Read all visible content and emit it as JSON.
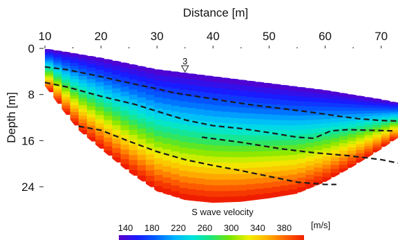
{
  "chart_data": {
    "type": "heatmap",
    "title": "",
    "xlabel": "Distance [m]",
    "ylabel": "Depth [m]",
    "xlim": [
      10,
      73
    ],
    "ylim": [
      0,
      27
    ],
    "y_inverted": true,
    "x_axis_position": "top",
    "x_ticks": [
      "10",
      "20",
      "30",
      "40",
      "50",
      "60",
      "70"
    ],
    "x_tick_values": [
      10,
      20,
      30,
      40,
      50,
      60,
      70
    ],
    "y_ticks": [
      "0",
      "8",
      "16",
      "24"
    ],
    "y_tick_values": [
      0,
      8,
      16,
      24
    ],
    "marker": {
      "label": "3",
      "x": 35,
      "symbol": "inverted-triangle"
    },
    "colorbar": {
      "title": "S wave velocity",
      "unit": "[m/s]",
      "ticks": [
        "140",
        "180",
        "220",
        "260",
        "300",
        "340",
        "380"
      ],
      "tick_values": [
        140,
        180,
        220,
        260,
        300,
        340,
        380
      ],
      "range": [
        130,
        410
      ],
      "colors": [
        "#5b00c8",
        "#1a1aff",
        "#0060ff",
        "#00b4ff",
        "#00e6dc",
        "#1ee678",
        "#7ae600",
        "#f0f000",
        "#ffb400",
        "#ff6400",
        "#f01e00"
      ]
    },
    "section_boundary": {
      "top": [
        [
          10,
          0
        ],
        [
          14,
          0.6
        ],
        [
          20,
          1.6
        ],
        [
          26,
          2.8
        ],
        [
          30,
          3.6
        ],
        [
          35,
          4.2
        ],
        [
          40,
          4.8
        ],
        [
          45,
          5.4
        ],
        [
          50,
          6.0
        ],
        [
          55,
          6.6
        ],
        [
          60,
          7.2
        ],
        [
          65,
          8.0
        ],
        [
          70,
          8.8
        ],
        [
          73,
          9.4
        ]
      ],
      "bottom": [
        [
          10,
          6.5
        ],
        [
          13,
          10.5
        ],
        [
          16,
          14.2
        ],
        [
          20,
          17.5
        ],
        [
          25,
          21.5
        ],
        [
          30,
          24.8
        ],
        [
          35,
          26.3
        ],
        [
          40,
          26.8
        ],
        [
          45,
          26.6
        ],
        [
          50,
          26.0
        ],
        [
          55,
          25.2
        ],
        [
          60,
          23.2
        ],
        [
          65,
          20.5
        ],
        [
          70,
          17.5
        ],
        [
          73,
          15.5
        ]
      ]
    },
    "layer_boundaries": [
      {
        "points": [
          [
            10,
            3.2
          ],
          [
            14,
            3.7
          ],
          [
            20,
            4.9
          ],
          [
            26,
            6.2
          ],
          [
            30,
            7.0
          ],
          [
            33,
            7.7
          ],
          [
            37,
            8.3
          ],
          [
            42,
            9.1
          ],
          [
            47,
            9.8
          ],
          [
            52,
            10.4
          ],
          [
            57,
            11.0
          ],
          [
            62,
            11.7
          ],
          [
            66,
            12.2
          ],
          [
            70,
            12.5
          ],
          [
            73,
            12.6
          ]
        ]
      },
      {
        "points": [
          [
            10,
            5.9
          ],
          [
            14,
            6.7
          ],
          [
            20,
            8.3
          ],
          [
            26,
            9.7
          ],
          [
            31,
            11.2
          ],
          [
            35,
            12.4
          ],
          [
            40,
            13.4
          ],
          [
            45,
            13.9
          ],
          [
            50,
            14.6
          ],
          [
            55,
            15.4
          ],
          [
            58,
            15.6
          ],
          [
            61,
            14.3
          ],
          [
            64,
            14.1
          ],
          [
            68,
            14.2
          ],
          [
            72,
            14.3
          ]
        ]
      },
      {
        "points": [
          [
            16,
            13.5
          ],
          [
            20,
            14.2
          ],
          [
            25,
            16.1
          ],
          [
            30,
            17.9
          ],
          [
            35,
            19.3
          ],
          [
            40,
            20.3
          ],
          [
            45,
            21.2
          ],
          [
            50,
            22.2
          ],
          [
            55,
            23.2
          ],
          [
            60,
            23.6
          ],
          [
            62,
            23.6
          ]
        ]
      },
      {
        "points": [
          [
            38,
            15.4
          ],
          [
            45,
            16.3
          ],
          [
            52,
            17.4
          ],
          [
            58,
            18.1
          ],
          [
            64,
            18.6
          ],
          [
            70,
            19.3
          ],
          [
            73,
            19.9
          ]
        ]
      }
    ]
  }
}
